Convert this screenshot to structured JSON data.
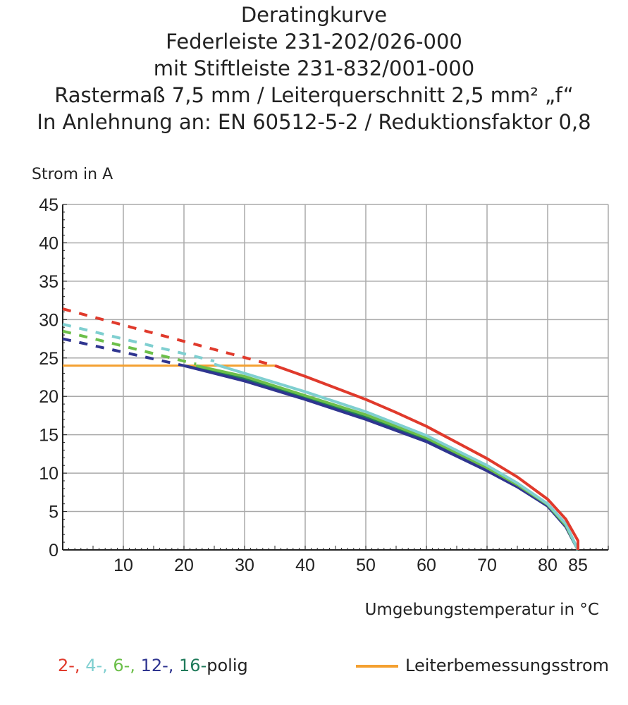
{
  "chart_data": {
    "type": "line",
    "title": [
      "Deratingkurve",
      "Federleiste 231-202/026-000",
      "mit Stiftleiste 231-832/001-000",
      "Rastermaß 7,5 mm / Leiterquerschnitt 2,5 mm² „f“",
      "In Anlehnung an: EN 60512-5-2 / Reduktionsfaktor 0,8"
    ],
    "ylabel": "Strom in A",
    "xlabel": "Umgebungstemperatur in °C",
    "xlim": [
      0,
      90
    ],
    "ylim": [
      0,
      45
    ],
    "xticks": [
      10,
      20,
      30,
      40,
      50,
      60,
      70,
      80,
      85
    ],
    "yticks": [
      0,
      5,
      10,
      15,
      20,
      25,
      30,
      35,
      40,
      45
    ],
    "grid": true,
    "series": [
      {
        "name": "2-",
        "color": "#e03a2c",
        "dashed": [
          [
            0,
            31.4
          ],
          [
            35,
            24
          ]
        ],
        "solid": [
          [
            35,
            24
          ],
          [
            40,
            22.6
          ],
          [
            50,
            19.6
          ],
          [
            55,
            17.9
          ],
          [
            60,
            16.1
          ],
          [
            70,
            11.9
          ],
          [
            75,
            9.5
          ],
          [
            80,
            6.6
          ],
          [
            83,
            4.0
          ],
          [
            85,
            1.2
          ],
          [
            85,
            0
          ]
        ]
      },
      {
        "name": "4-",
        "color": "#7fcfd0",
        "dashed": [
          [
            0,
            29.4
          ],
          [
            25,
            24.6
          ]
        ],
        "solid": [
          [
            25,
            24.2
          ],
          [
            30,
            23.0
          ],
          [
            40,
            20.6
          ],
          [
            50,
            18.0
          ],
          [
            60,
            14.9
          ],
          [
            70,
            11.0
          ],
          [
            75,
            8.7
          ],
          [
            80,
            6.0
          ],
          [
            83,
            3.4
          ],
          [
            85,
            0
          ]
        ]
      },
      {
        "name": "6-",
        "color": "#6cbf4a",
        "dashed": [
          [
            0,
            28.5
          ],
          [
            22,
            24.2
          ]
        ],
        "solid": [
          [
            22,
            24.0
          ],
          [
            30,
            22.6
          ],
          [
            40,
            20.1
          ],
          [
            50,
            17.6
          ],
          [
            60,
            14.6
          ],
          [
            70,
            10.7
          ],
          [
            75,
            8.5
          ],
          [
            80,
            5.9
          ],
          [
            83,
            3.2
          ],
          [
            85,
            0
          ]
        ]
      },
      {
        "name": "12-",
        "color": "#2f3590",
        "dashed": [
          [
            0,
            27.5
          ],
          [
            20,
            24.0
          ]
        ],
        "solid": [
          [
            20,
            24.0
          ],
          [
            30,
            22.0
          ],
          [
            40,
            19.6
          ],
          [
            50,
            17.0
          ],
          [
            60,
            14.1
          ],
          [
            70,
            10.3
          ],
          [
            75,
            8.2
          ],
          [
            80,
            5.7
          ],
          [
            83,
            3.0
          ],
          [
            85,
            0
          ]
        ]
      },
      {
        "name": "16-",
        "color": "#1f7a5a",
        "dashed": [],
        "solid": [
          [
            20,
            24.0
          ],
          [
            30,
            22.3
          ],
          [
            40,
            19.8
          ],
          [
            50,
            17.3
          ],
          [
            60,
            14.3
          ],
          [
            70,
            10.5
          ],
          [
            75,
            8.3
          ],
          [
            80,
            5.8
          ],
          [
            83,
            3.1
          ],
          [
            85,
            0
          ]
        ]
      }
    ],
    "rated_current": {
      "name": "Leiterbemessungsstrom",
      "color": "#f4a030",
      "points": [
        [
          0,
          24
        ],
        [
          35,
          24
        ]
      ]
    },
    "legend": {
      "series_suffix": "polig",
      "separator": ", ",
      "placement": "bottom"
    }
  }
}
